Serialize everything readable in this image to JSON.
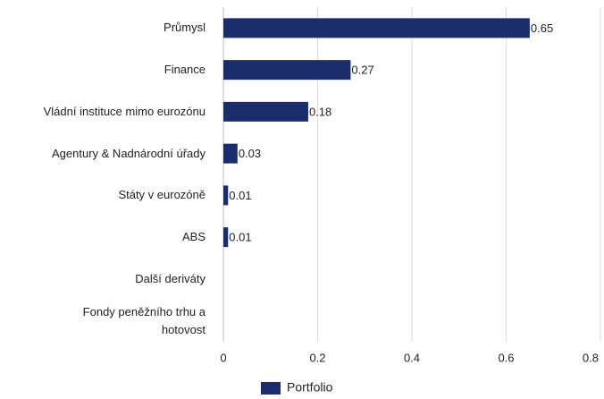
{
  "chart_data": {
    "type": "bar",
    "orientation": "horizontal",
    "categories": [
      "Průmysl",
      "Finance",
      "Vládní instituce mimo eurozónu",
      "Agentury & Nadnárodní úřady",
      "Státy v eurozóně",
      "ABS",
      "Další deriváty",
      "Fondy peněžního trhu a\nhotovost"
    ],
    "series": [
      {
        "name": "Portfolio",
        "color": "#1c2d6b",
        "values": [
          0.65,
          0.27,
          0.18,
          0.03,
          0.01,
          0.01,
          null,
          null
        ]
      }
    ],
    "xlim": [
      0,
      0.8
    ],
    "xticks": [
      0,
      0.2,
      0.4,
      0.6,
      0.8
    ],
    "grid": true,
    "legend": "bottom"
  }
}
